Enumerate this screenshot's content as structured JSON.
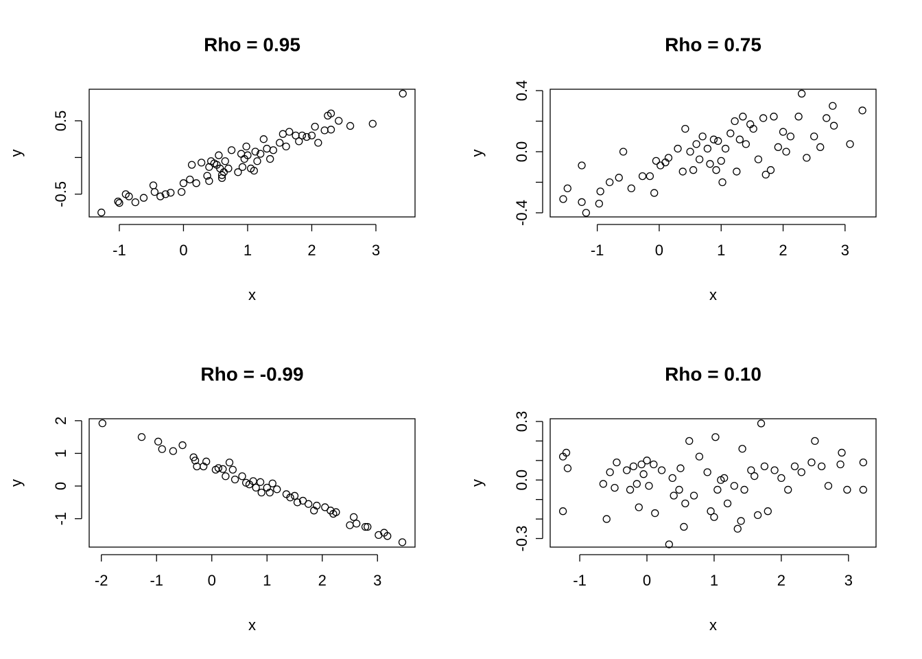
{
  "chart_data": [
    {
      "type": "scatter",
      "title": "Rho = 0.95",
      "xlabel": "x",
      "ylabel": "y",
      "color": "#000000",
      "x": [
        -1.28,
        -1.02,
        -1.0,
        -0.9,
        -0.85,
        -0.75,
        -0.62,
        -0.47,
        -0.45,
        -0.36,
        -0.28,
        -0.2,
        -0.03,
        0.0,
        0.1,
        0.13,
        0.2,
        0.28,
        0.37,
        0.4,
        0.4,
        0.43,
        0.48,
        0.52,
        0.55,
        0.57,
        0.6,
        0.6,
        0.63,
        0.65,
        0.7,
        0.75,
        0.85,
        0.9,
        0.92,
        0.95,
        0.98,
        1.0,
        1.05,
        1.1,
        1.12,
        1.15,
        1.2,
        1.25,
        1.3,
        1.35,
        1.4,
        1.5,
        1.55,
        1.6,
        1.65,
        1.75,
        1.8,
        1.85,
        1.92,
        2.0,
        2.05,
        2.1,
        2.2,
        2.25,
        2.3,
        2.3,
        2.42,
        2.6,
        2.95,
        3.42
      ],
      "y": [
        -0.75,
        -0.6,
        -0.62,
        -0.5,
        -0.53,
        -0.61,
        -0.55,
        -0.38,
        -0.47,
        -0.53,
        -0.5,
        -0.48,
        -0.47,
        -0.35,
        -0.3,
        -0.1,
        -0.35,
        -0.07,
        -0.25,
        -0.13,
        -0.32,
        -0.05,
        -0.08,
        -0.1,
        0.03,
        -0.15,
        -0.28,
        -0.24,
        -0.2,
        -0.05,
        -0.15,
        0.1,
        -0.2,
        0.05,
        -0.13,
        -0.02,
        0.15,
        0.03,
        -0.15,
        -0.18,
        0.08,
        -0.05,
        0.05,
        0.25,
        0.12,
        -0.02,
        0.1,
        0.2,
        0.32,
        0.15,
        0.35,
        0.3,
        0.22,
        0.3,
        0.28,
        0.3,
        0.42,
        0.2,
        0.37,
        0.57,
        0.6,
        0.38,
        0.5,
        0.43,
        0.46,
        0.87
      ],
      "xlim": [
        -1.47,
        3.61
      ],
      "ylim": [
        -0.81,
        0.93
      ],
      "xticks": [
        -1,
        0,
        1,
        2,
        3
      ],
      "yticks": [
        -0.5,
        {
          "value": 0,
          "label": null
        },
        0.5
      ]
    },
    {
      "type": "scatter",
      "title": "Rho = 0.75",
      "xlabel": "x",
      "ylabel": "y",
      "color": "#000000",
      "x": [
        -1.55,
        -1.48,
        -1.25,
        -1.25,
        -1.18,
        -0.95,
        -0.97,
        -0.8,
        -0.65,
        -0.58,
        -0.45,
        -0.27,
        -0.15,
        -0.08,
        -0.05,
        0.02,
        0.1,
        0.15,
        0.3,
        0.38,
        0.42,
        0.5,
        0.55,
        0.6,
        0.65,
        0.7,
        0.78,
        0.82,
        0.88,
        0.92,
        0.95,
        1.0,
        1.02,
        1.07,
        1.15,
        1.22,
        1.25,
        1.3,
        1.35,
        1.4,
        1.47,
        1.52,
        1.6,
        1.68,
        1.72,
        1.8,
        1.85,
        1.92,
        2.0,
        2.05,
        2.12,
        2.25,
        2.3,
        2.38,
        2.5,
        2.6,
        2.7,
        2.8,
        2.82,
        3.08,
        3.28
      ],
      "y": [
        -0.31,
        -0.24,
        -0.33,
        -0.09,
        -0.4,
        -0.26,
        -0.34,
        -0.2,
        -0.17,
        0.0,
        -0.24,
        -0.16,
        -0.16,
        -0.27,
        -0.06,
        -0.09,
        -0.07,
        -0.04,
        0.02,
        -0.13,
        0.15,
        0.0,
        -0.12,
        0.05,
        -0.05,
        0.1,
        0.02,
        -0.08,
        0.08,
        -0.12,
        0.07,
        -0.06,
        -0.2,
        0.02,
        0.12,
        0.2,
        -0.13,
        0.08,
        0.23,
        0.05,
        0.18,
        0.15,
        -0.05,
        0.22,
        -0.15,
        -0.12,
        0.23,
        0.03,
        0.13,
        0.0,
        0.1,
        0.23,
        0.38,
        -0.04,
        0.1,
        0.03,
        0.22,
        0.3,
        0.17,
        0.05,
        0.27
      ],
      "xlim": [
        -1.76,
        3.5
      ],
      "ylim": [
        -0.427,
        0.409
      ],
      "xticks": [
        -1,
        0,
        1,
        2,
        3
      ],
      "yticks": [
        -0.4,
        {
          "value": -0.2,
          "label": null
        },
        {
          "value": 0,
          "label": "0.0"
        },
        {
          "value": 0.2,
          "label": null
        },
        0.4
      ]
    },
    {
      "type": "scatter",
      "title": "Rho = -0.99",
      "xlabel": "x",
      "ylabel": "y",
      "color": "#000000",
      "x": [
        -1.98,
        -1.27,
        -0.97,
        -0.9,
        -0.7,
        -0.53,
        -0.33,
        -0.3,
        -0.27,
        -0.15,
        -0.1,
        0.07,
        0.12,
        0.2,
        0.25,
        0.32,
        0.38,
        0.42,
        0.55,
        0.62,
        0.68,
        0.75,
        0.8,
        0.88,
        0.9,
        1.0,
        1.05,
        1.1,
        1.18,
        1.35,
        1.42,
        1.5,
        1.55,
        1.65,
        1.75,
        1.85,
        1.9,
        2.05,
        2.15,
        2.2,
        2.25,
        2.5,
        2.57,
        2.62,
        2.78,
        2.82,
        3.02,
        3.12,
        3.18,
        3.45
      ],
      "y": [
        1.92,
        1.5,
        1.36,
        1.13,
        1.07,
        1.25,
        0.88,
        0.78,
        0.6,
        0.6,
        0.75,
        0.5,
        0.55,
        0.52,
        0.3,
        0.72,
        0.5,
        0.2,
        0.3,
        0.1,
        0.05,
        0.15,
        -0.05,
        0.12,
        -0.2,
        -0.05,
        -0.2,
        0.08,
        -0.1,
        -0.25,
        -0.35,
        -0.3,
        -0.5,
        -0.45,
        -0.55,
        -0.75,
        -0.6,
        -0.65,
        -0.75,
        -0.85,
        -0.8,
        -1.2,
        -0.95,
        -1.15,
        -1.25,
        -1.25,
        -1.5,
        -1.43,
        -1.53,
        -1.72
      ],
      "xlim": [
        -2.22,
        3.68
      ],
      "ylim": [
        -1.87,
        2.06
      ],
      "xticks": [
        -2,
        -1,
        0,
        1,
        2,
        3
      ],
      "yticks": [
        -1,
        0,
        1,
        2
      ]
    },
    {
      "type": "scatter",
      "title": "Rho = 0.10",
      "xlabel": "x",
      "ylabel": "y",
      "color": "#000000",
      "x": [
        -1.25,
        -1.25,
        -1.2,
        -1.18,
        -0.65,
        -0.6,
        -0.55,
        -0.48,
        -0.45,
        -0.3,
        -0.25,
        -0.2,
        -0.15,
        -0.12,
        -0.08,
        -0.05,
        0.0,
        0.03,
        0.1,
        0.12,
        0.22,
        0.33,
        0.38,
        0.4,
        0.48,
        0.5,
        0.55,
        0.57,
        0.63,
        0.7,
        0.78,
        0.9,
        0.95,
        1.0,
        1.02,
        1.05,
        1.1,
        1.15,
        1.2,
        1.3,
        1.35,
        1.4,
        1.42,
        1.45,
        1.55,
        1.6,
        1.65,
        1.7,
        1.75,
        1.8,
        1.9,
        2.0,
        2.1,
        2.2,
        2.3,
        2.45,
        2.5,
        2.6,
        2.7,
        2.88,
        2.9,
        2.98,
        3.22,
        3.22
      ],
      "y": [
        -0.16,
        0.12,
        0.14,
        0.06,
        -0.02,
        -0.2,
        0.04,
        -0.04,
        0.09,
        0.05,
        -0.05,
        0.07,
        -0.02,
        -0.14,
        0.08,
        0.03,
        0.1,
        -0.03,
        0.08,
        -0.17,
        0.05,
        -0.33,
        0.01,
        -0.08,
        -0.05,
        0.06,
        -0.24,
        -0.12,
        0.2,
        -0.08,
        0.12,
        0.04,
        -0.16,
        -0.19,
        0.22,
        -0.05,
        0.0,
        0.01,
        -0.12,
        -0.03,
        -0.25,
        -0.21,
        0.16,
        -0.05,
        0.05,
        0.02,
        -0.18,
        0.29,
        0.07,
        -0.16,
        0.05,
        0.01,
        -0.05,
        0.07,
        0.04,
        0.09,
        0.2,
        0.07,
        -0.03,
        0.08,
        0.14,
        -0.05,
        0.09,
        -0.05
      ],
      "xlim": [
        -1.44,
        3.41
      ],
      "ylim": [
        -0.344,
        0.314
      ],
      "xticks": [
        -1,
        0,
        1,
        2,
        3
      ],
      "yticks": [
        -0.3,
        {
          "value": -0.2,
          "label": null
        },
        {
          "value": -0.1,
          "label": null
        },
        {
          "value": 0,
          "label": "0.0"
        },
        {
          "value": 0.1,
          "label": null
        },
        {
          "value": 0.2,
          "label": null
        },
        0.3
      ]
    }
  ]
}
